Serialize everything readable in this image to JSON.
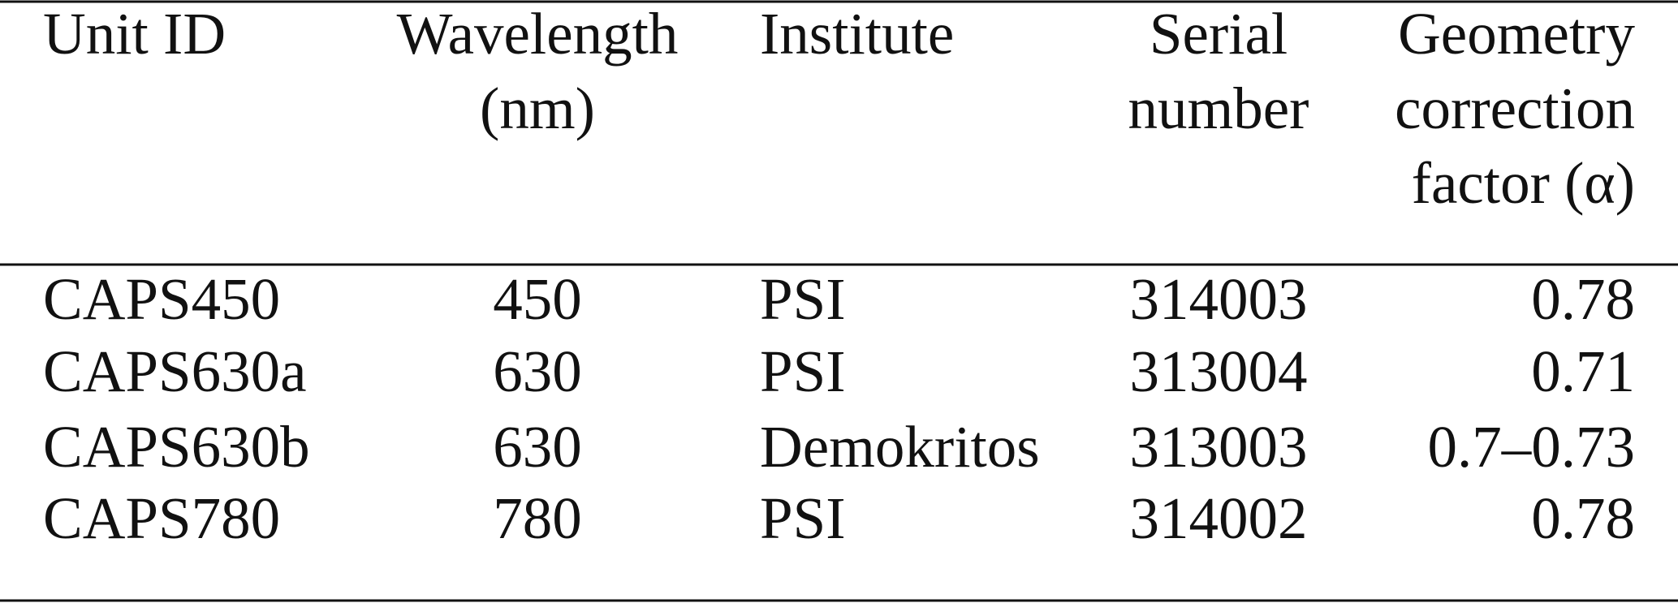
{
  "table": {
    "header": [
      [
        "Unit ID"
      ],
      [
        "Wavelength",
        "(nm)"
      ],
      [
        "Institute"
      ],
      [
        "Serial",
        "number"
      ],
      [
        "Geometry",
        "correction",
        "factor (α)"
      ]
    ],
    "rows": [
      [
        "CAPS450",
        "450",
        "PSI",
        "314003",
        "0.78"
      ],
      [
        "CAPS630a",
        "630",
        "PSI",
        "313004",
        "0.71"
      ],
      [
        "CAPS630b",
        "630",
        "Demokritos",
        "313003",
        "0.7–0.73"
      ],
      [
        "CAPS780",
        "780",
        "PSI",
        "314002",
        "0.78"
      ]
    ]
  }
}
